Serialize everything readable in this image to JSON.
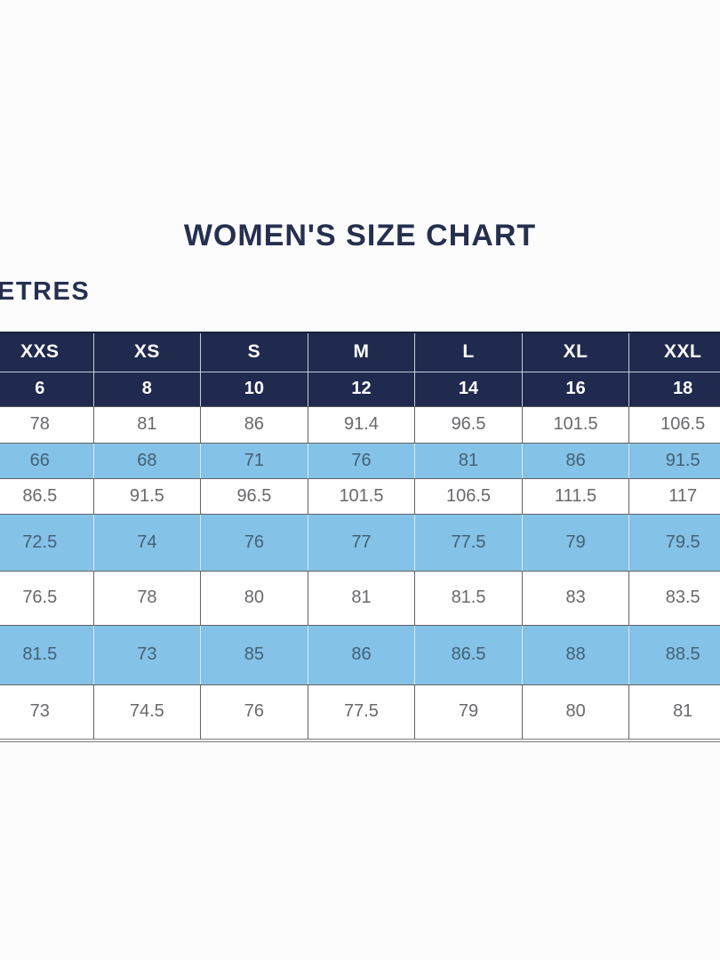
{
  "title": "WOMEN'S SIZE CHART",
  "unit_label": "ETRES",
  "colors": {
    "navy_header": "#1f2a4e",
    "light_blue_row": "#84c2e7",
    "white_row": "#fefefe",
    "title_text": "#25304f",
    "header_text": "#ffffff",
    "white_row_text": "#68696c",
    "blue_row_text": "#436176"
  },
  "table": {
    "size_headers": [
      "XXS",
      "XS",
      "S",
      "M",
      "L",
      "XL",
      "XXL"
    ],
    "numeric_headers": [
      "6",
      "8",
      "10",
      "12",
      "14",
      "16",
      "18"
    ],
    "rows": [
      {
        "shade": "white",
        "values": [
          "78",
          "81",
          "86",
          "91.4",
          "96.5",
          "101.5",
          "106.5"
        ]
      },
      {
        "shade": "blue",
        "values": [
          "66",
          "68",
          "71",
          "76",
          "81",
          "86",
          "91.5"
        ]
      },
      {
        "shade": "white",
        "values": [
          "86.5",
          "91.5",
          "96.5",
          "101.5",
          "106.5",
          "111.5",
          "117"
        ]
      },
      {
        "shade": "blue",
        "values": [
          "72.5",
          "74",
          "76",
          "77",
          "77.5",
          "79",
          "79.5"
        ]
      },
      {
        "shade": "white",
        "values": [
          "76.5",
          "78",
          "80",
          "81",
          "81.5",
          "83",
          "83.5"
        ]
      },
      {
        "shade": "blue",
        "values": [
          "81.5",
          "73",
          "85",
          "86",
          "86.5",
          "88",
          "88.5"
        ]
      },
      {
        "shade": "white",
        "values": [
          "73",
          "74.5",
          "76",
          "77.5",
          "79",
          "80",
          "81"
        ]
      }
    ]
  }
}
